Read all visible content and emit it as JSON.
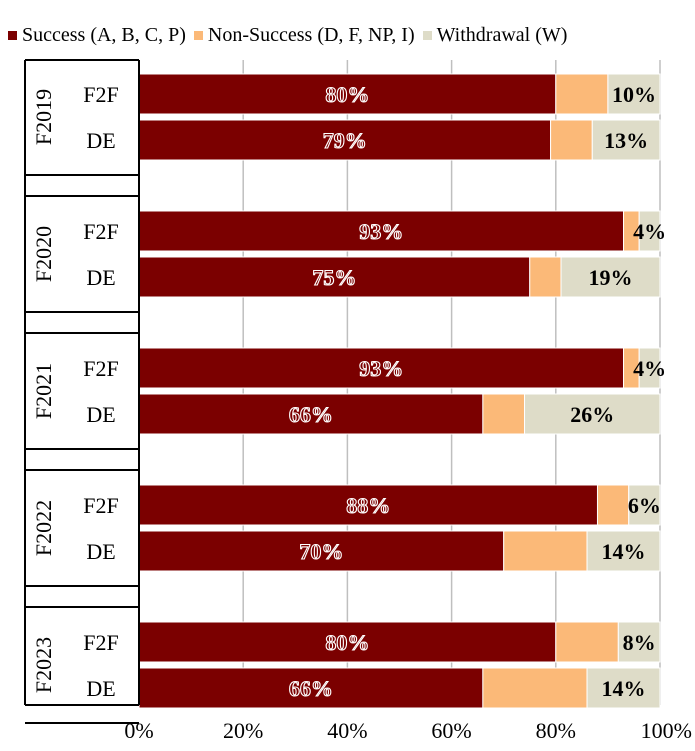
{
  "chart_data": {
    "type": "bar",
    "orientation": "horizontal",
    "stacked": true,
    "legend_position": "top",
    "grid": true,
    "xlim": [
      0,
      100
    ],
    "x_ticks": [
      "0%",
      "20%",
      "40%",
      "60%",
      "80%",
      "100%"
    ],
    "groups": [
      {
        "label": "F2019",
        "categories": [
          "F2F",
          "DE"
        ]
      },
      {
        "label": "F2020",
        "categories": [
          "F2F",
          "DE"
        ]
      },
      {
        "label": "F2021",
        "categories": [
          "F2F",
          "DE"
        ]
      },
      {
        "label": "F2022",
        "categories": [
          "F2F",
          "DE"
        ]
      },
      {
        "label": "F2023",
        "categories": [
          "F2F",
          "DE"
        ]
      }
    ],
    "series": [
      {
        "name": "Success (A, B, C, P)",
        "color": "#7b0000",
        "values": [
          80,
          79,
          93,
          75,
          93,
          66,
          88,
          70,
          80,
          66
        ],
        "labels": [
          "80%",
          "79%",
          "93%",
          "75%",
          "93%",
          "66%",
          "88%",
          "70%",
          "80%",
          "66%"
        ]
      },
      {
        "name": "Non-Success (D, F, NP, I)",
        "color": "#fbb978",
        "values": [
          10,
          8,
          3,
          6,
          3,
          8,
          6,
          16,
          12,
          20
        ],
        "labels": []
      },
      {
        "name": "Withdrawal (W)",
        "color": "#dedcc8",
        "values": [
          10,
          13,
          4,
          19,
          4,
          26,
          6,
          14,
          8,
          14
        ],
        "labels": [
          "10%",
          "13%",
          "4%",
          "19%",
          "4%",
          "26%",
          "6%",
          "14%",
          "8%",
          "14%"
        ]
      }
    ]
  }
}
